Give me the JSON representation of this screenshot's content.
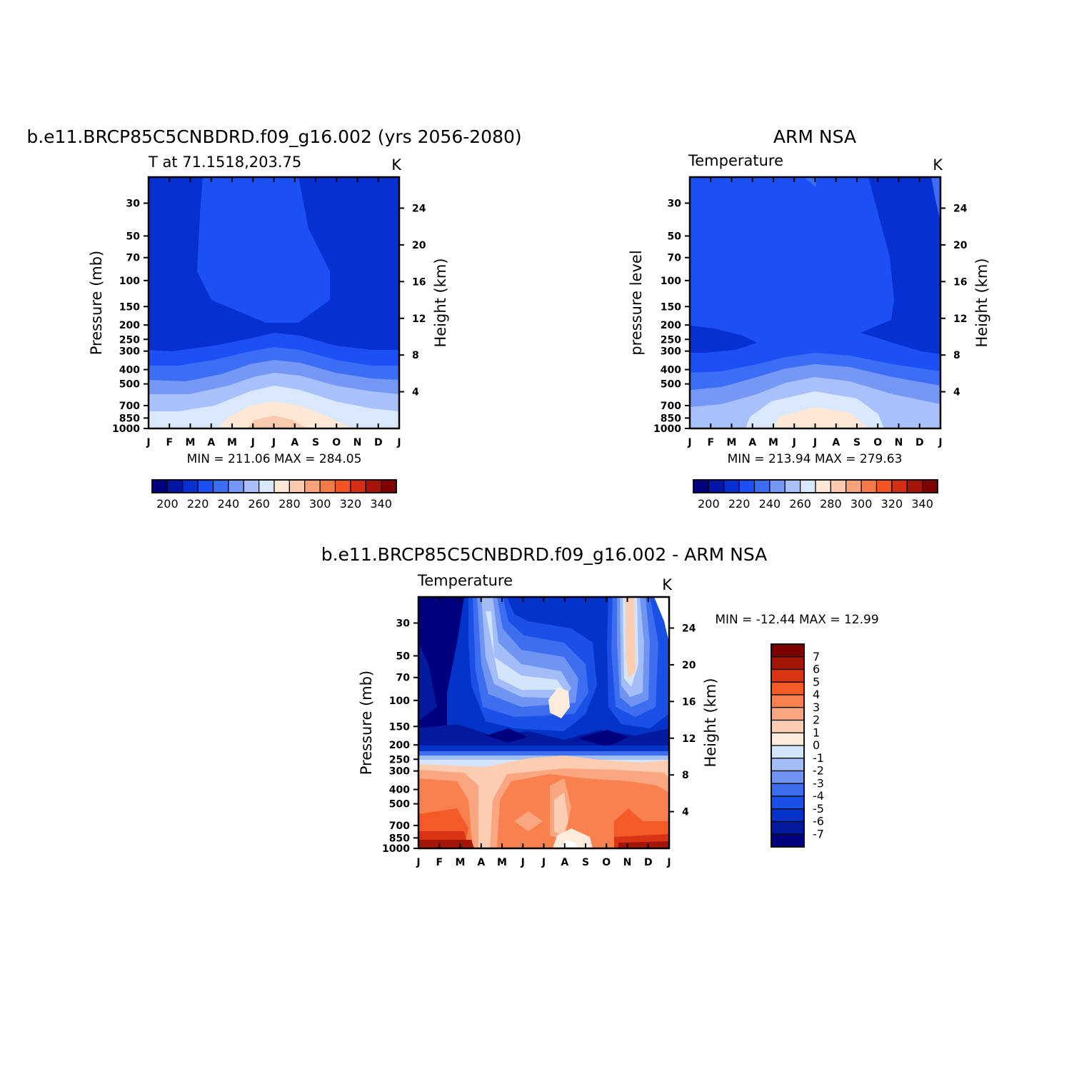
{
  "chart_data": [
    {
      "type": "heatmap",
      "title": "b.e11.BRCP85C5CNBDRD.f09_g16.002 (yrs 2056-2080)",
      "subtitle_left": "T at 71.1518,203.75",
      "subtitle_right": "K",
      "ylabel": "Pressure  (mb)",
      "ylabel_right": "Height  (km)",
      "stats": "MIN = 211.06  MAX = 284.05",
      "x_ticks": [
        "J",
        "F",
        "M",
        "A",
        "M",
        "J",
        "J",
        "A",
        "S",
        "O",
        "N",
        "D",
        "J"
      ],
      "y_ticks": [
        30,
        50,
        70,
        100,
        150,
        200,
        250,
        300,
        400,
        500,
        700,
        850,
        1000
      ],
      "height_ticks": [
        24,
        20,
        16,
        12,
        8,
        4
      ],
      "y_scale": "log",
      "colorbar": {
        "orientation": "horizontal",
        "levels": [
          200,
          210,
          220,
          230,
          240,
          250,
          260,
          270,
          280,
          290,
          300,
          310,
          320,
          330,
          340
        ],
        "labels": [
          "200",
          "220",
          "240",
          "260",
          "280",
          "300",
          "320",
          "340"
        ]
      }
    },
    {
      "type": "heatmap",
      "title": "ARM NSA",
      "subtitle_left": "Temperature",
      "subtitle_right": "K",
      "ylabel": "pressure  level",
      "ylabel_right": "Height  (km)",
      "stats": "MIN = 213.94  MAX = 279.63",
      "x_ticks": [
        "J",
        "F",
        "M",
        "A",
        "M",
        "J",
        "J",
        "A",
        "S",
        "O",
        "N",
        "D",
        "J"
      ],
      "y_ticks": [
        30,
        50,
        70,
        100,
        150,
        200,
        250,
        300,
        400,
        500,
        700,
        850,
        1000
      ],
      "height_ticks": [
        24,
        20,
        16,
        12,
        8,
        4
      ],
      "y_scale": "log",
      "colorbar": {
        "orientation": "horizontal",
        "levels": [
          200,
          210,
          220,
          230,
          240,
          250,
          260,
          270,
          280,
          290,
          300,
          310,
          320,
          330,
          340
        ],
        "labels": [
          "200",
          "220",
          "240",
          "260",
          "280",
          "300",
          "320",
          "340"
        ]
      }
    },
    {
      "type": "heatmap",
      "title": "b.e11.BRCP85C5CNBDRD.f09_g16.002 - ARM NSA",
      "subtitle_left": "Temperature",
      "subtitle_right": "K",
      "ylabel": "Pressure  (mb)",
      "ylabel_right": "Height  (km)",
      "stats": "MIN = -12.44  MAX =   12.99",
      "x_ticks": [
        "J",
        "F",
        "M",
        "A",
        "M",
        "J",
        "J",
        "A",
        "S",
        "O",
        "N",
        "D",
        "J"
      ],
      "y_ticks": [
        30,
        50,
        70,
        100,
        150,
        200,
        250,
        300,
        400,
        500,
        700,
        850,
        1000
      ],
      "height_ticks": [
        24,
        20,
        16,
        12,
        8,
        4
      ],
      "y_scale": "log",
      "colorbar": {
        "orientation": "vertical",
        "labels": [
          "7",
          "6",
          "5",
          "4",
          "3",
          "2",
          "1",
          "0",
          "-1",
          "-2",
          "-3",
          "-4",
          "-5",
          "-6",
          "-7"
        ]
      }
    }
  ],
  "colors": {
    "temperature_scale": [
      "#00007f",
      "#0216a6",
      "#0630d0",
      "#1c50f5",
      "#3c6ef5",
      "#7597f5",
      "#a8c0fb",
      "#d9e8fc",
      "#fde8d6",
      "#fbc9ab",
      "#f9a37a",
      "#f77b48",
      "#f55525",
      "#d42f14",
      "#a51508",
      "#7f0000"
    ],
    "difference_scale": [
      "#00007f",
      "#011a9e",
      "#0433c8",
      "#1a50e6",
      "#3d6ef0",
      "#6f94f2",
      "#a3bdf8",
      "#d3e4fb",
      "#fdecdc",
      "#fccdb0",
      "#faa781",
      "#f8814f",
      "#f45a26",
      "#d93515",
      "#a31607",
      "#7a0000"
    ]
  }
}
